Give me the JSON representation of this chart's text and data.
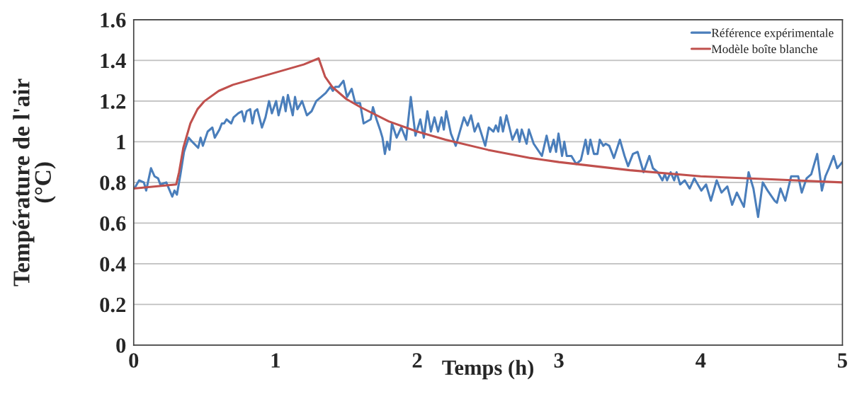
{
  "chart_data": {
    "type": "line",
    "xlabel": "Temps (h)",
    "ylabel": "Température de l'air\n(°C)",
    "xlim": [
      0,
      5
    ],
    "xticks": [
      0,
      1,
      2,
      3,
      4,
      5
    ],
    "ylim": [
      0,
      1.6
    ],
    "yticks": [
      0,
      0.2,
      0.4,
      0.6,
      0.8,
      1,
      1.2,
      1.4,
      1.6
    ],
    "grid": "y",
    "legend": "top right",
    "line_style": "solid",
    "marker": "none",
    "series": [
      {
        "name": "Référence expérimentale",
        "color": "#4a7ebb",
        "x": [
          0.005,
          0.038,
          0.072,
          0.088,
          0.122,
          0.147,
          0.172,
          0.188,
          0.23,
          0.272,
          0.288,
          0.305,
          0.33,
          0.355,
          0.388,
          0.413,
          0.455,
          0.472,
          0.488,
          0.522,
          0.555,
          0.572,
          0.605,
          0.622,
          0.638,
          0.655,
          0.688,
          0.705,
          0.738,
          0.763,
          0.78,
          0.797,
          0.822,
          0.838,
          0.855,
          0.872,
          0.905,
          0.93,
          0.955,
          0.975,
          1.005,
          1.022,
          1.055,
          1.072,
          1.088,
          1.122,
          1.138,
          1.155,
          1.188,
          1.222,
          1.255,
          1.288,
          1.322,
          1.355,
          1.388,
          1.405,
          1.422,
          1.447,
          1.48,
          1.505,
          1.538,
          1.563,
          1.597,
          1.622,
          1.672,
          1.688,
          1.713,
          1.738,
          1.755,
          1.772,
          1.788,
          1.805,
          1.822,
          1.855,
          1.888,
          1.922,
          1.955,
          1.988,
          2.022,
          2.047,
          2.072,
          2.097,
          2.122,
          2.147,
          2.172,
          2.188,
          2.205,
          2.238,
          2.272,
          2.33,
          2.355,
          2.38,
          2.405,
          2.43,
          2.48,
          2.505,
          2.538,
          2.555,
          2.572,
          2.588,
          2.605,
          2.63,
          2.672,
          2.705,
          2.722,
          2.738,
          2.772,
          2.788,
          2.822,
          2.88,
          2.913,
          2.938,
          2.963,
          2.98,
          2.997,
          3.022,
          3.038,
          3.055,
          3.088,
          3.122,
          3.155,
          3.188,
          3.205,
          3.222,
          3.247,
          3.272,
          3.288,
          3.313,
          3.33,
          3.355,
          3.388,
          3.43,
          3.463,
          3.488,
          3.522,
          3.555,
          3.597,
          3.638,
          3.663,
          3.697,
          3.73,
          3.747,
          3.763,
          3.788,
          3.813,
          3.83,
          3.855,
          3.888,
          3.922,
          3.955,
          4.005,
          4.038,
          4.072,
          4.113,
          4.147,
          4.188,
          4.222,
          4.255,
          4.305,
          4.338,
          4.372,
          4.405,
          4.438,
          4.472,
          4.522,
          4.538,
          4.563,
          4.597,
          4.638,
          4.688,
          4.713,
          4.747,
          4.78,
          4.822,
          4.855,
          4.88,
          4.905,
          4.938,
          4.963,
          5.0
        ],
        "values": [
          0.77,
          0.81,
          0.8,
          0.76,
          0.87,
          0.83,
          0.82,
          0.79,
          0.8,
          0.73,
          0.76,
          0.74,
          0.84,
          0.95,
          1.02,
          1.0,
          0.97,
          1.02,
          0.98,
          1.05,
          1.07,
          1.02,
          1.06,
          1.09,
          1.09,
          1.11,
          1.09,
          1.12,
          1.14,
          1.15,
          1.1,
          1.15,
          1.16,
          1.09,
          1.15,
          1.16,
          1.07,
          1.12,
          1.2,
          1.14,
          1.2,
          1.13,
          1.22,
          1.15,
          1.23,
          1.13,
          1.22,
          1.16,
          1.2,
          1.13,
          1.15,
          1.2,
          1.22,
          1.24,
          1.27,
          1.25,
          1.27,
          1.27,
          1.3,
          1.22,
          1.26,
          1.19,
          1.19,
          1.09,
          1.11,
          1.17,
          1.11,
          1.06,
          1.02,
          0.94,
          1.0,
          0.96,
          1.09,
          1.02,
          1.07,
          1.01,
          1.22,
          1.03,
          1.11,
          1.02,
          1.15,
          1.05,
          1.12,
          1.05,
          1.12,
          1.06,
          1.15,
          1.04,
          0.98,
          1.12,
          1.08,
          1.13,
          1.05,
          1.09,
          0.98,
          1.07,
          1.05,
          1.08,
          1.05,
          1.12,
          1.05,
          1.13,
          1.01,
          1.06,
          1.0,
          1.06,
          0.99,
          1.06,
          0.99,
          0.93,
          1.03,
          0.95,
          1.01,
          0.95,
          1.04,
          0.93,
          1.0,
          0.93,
          0.93,
          0.89,
          0.91,
          1.01,
          0.94,
          1.01,
          0.94,
          0.94,
          1.01,
          0.98,
          0.99,
          0.98,
          0.92,
          1.01,
          0.93,
          0.88,
          0.94,
          0.95,
          0.85,
          0.93,
          0.87,
          0.85,
          0.81,
          0.84,
          0.81,
          0.85,
          0.81,
          0.85,
          0.79,
          0.81,
          0.77,
          0.82,
          0.76,
          0.79,
          0.71,
          0.81,
          0.75,
          0.78,
          0.69,
          0.75,
          0.68,
          0.85,
          0.77,
          0.63,
          0.8,
          0.76,
          0.71,
          0.7,
          0.77,
          0.71,
          0.83,
          0.83,
          0.75,
          0.82,
          0.84,
          0.94,
          0.76,
          0.83,
          0.87,
          0.93,
          0.87,
          0.9
        ]
      },
      {
        "name": "Modèle boîte blanche",
        "color": "#c0504d",
        "x": [
          0,
          0.3,
          0.32,
          0.35,
          0.4,
          0.45,
          0.5,
          0.6,
          0.7,
          0.8,
          1.0,
          1.2,
          1.305,
          1.35,
          1.4,
          1.5,
          1.6,
          1.8,
          2.0,
          2.2,
          2.5,
          2.8,
          3.0,
          3.5,
          4.0,
          4.5,
          5.0
        ],
        "values": [
          0.77,
          0.79,
          0.85,
          0.97,
          1.09,
          1.16,
          1.2,
          1.25,
          1.28,
          1.3,
          1.34,
          1.38,
          1.41,
          1.32,
          1.27,
          1.21,
          1.17,
          1.1,
          1.05,
          1.01,
          0.96,
          0.92,
          0.9,
          0.86,
          0.83,
          0.815,
          0.8
        ]
      }
    ]
  }
}
